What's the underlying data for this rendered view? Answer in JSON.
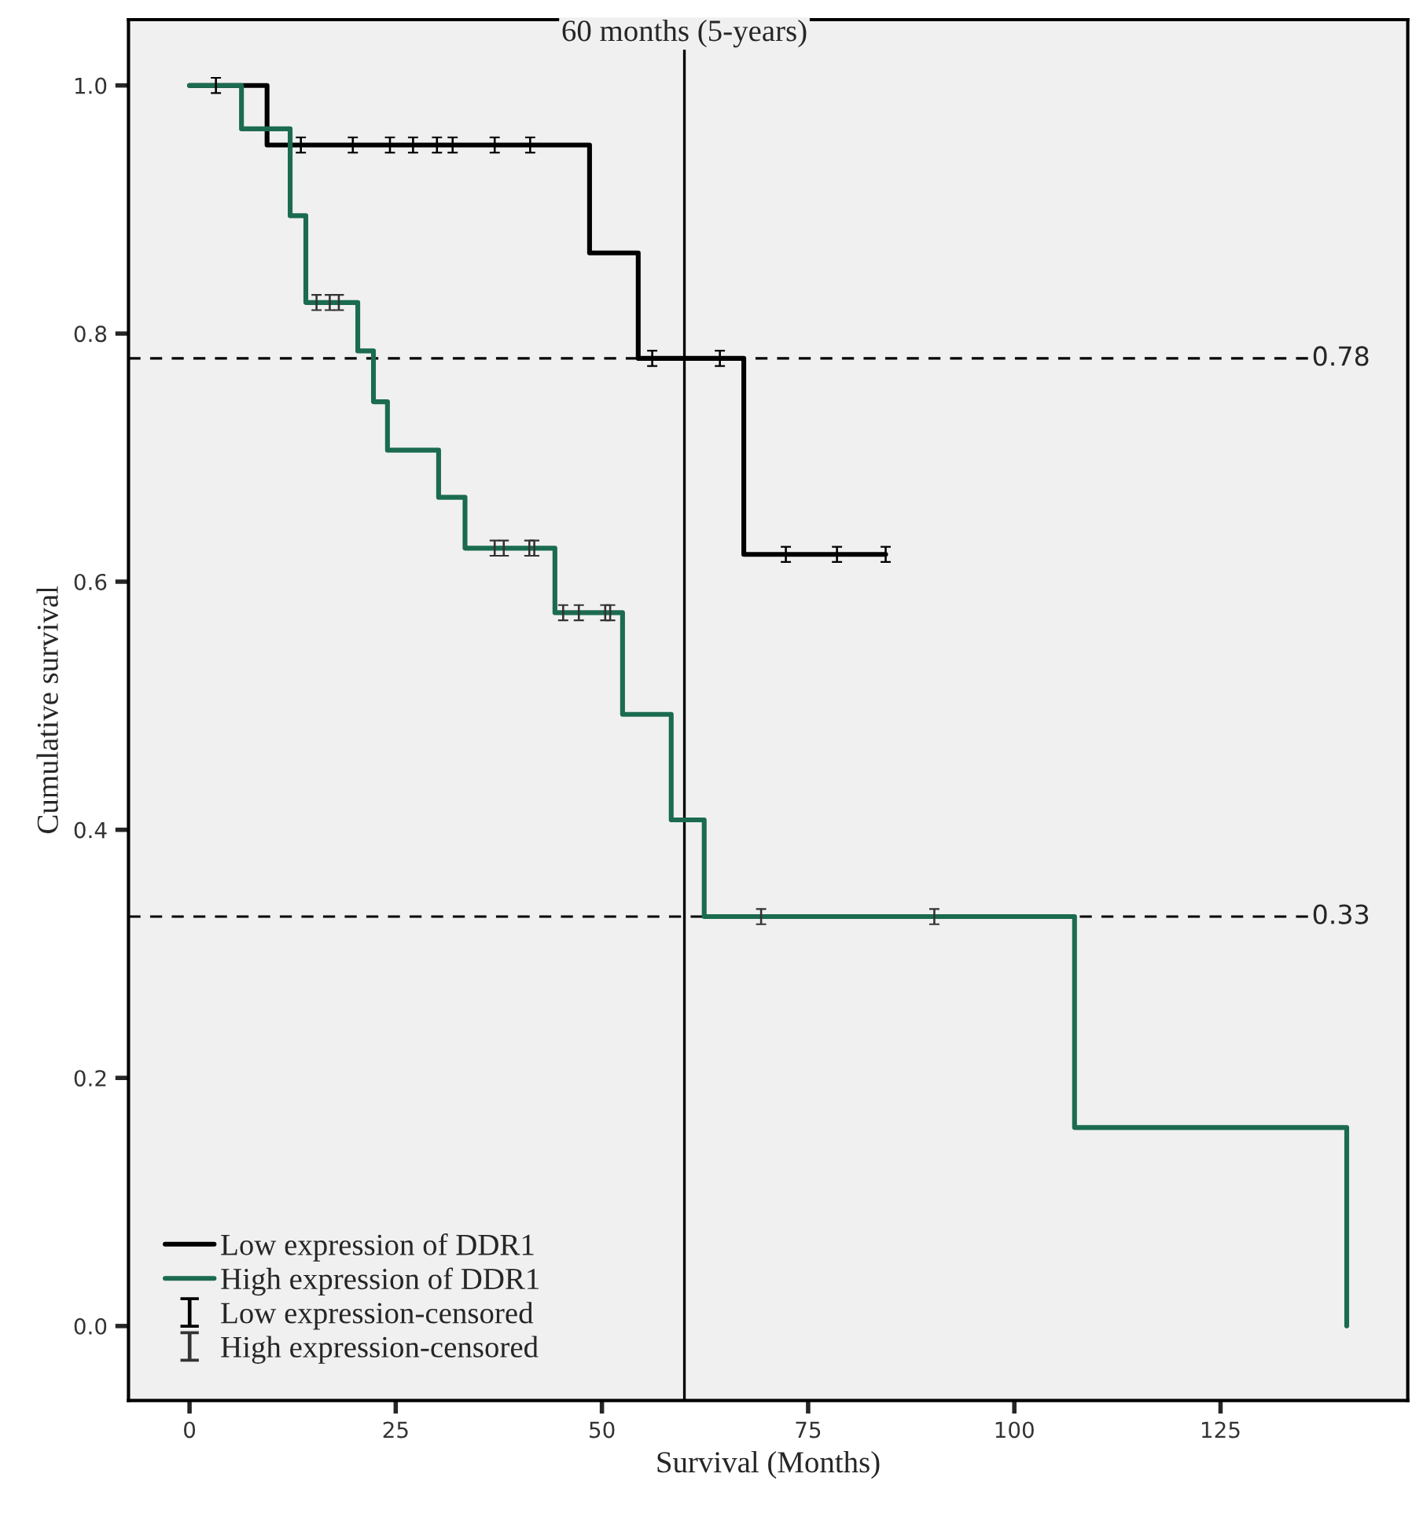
{
  "chart_data": {
    "type": "step",
    "xlabel": "Survival (Months)",
    "ylabel": "Cumulative survival",
    "series": [
      {
        "name": "Low expression of DDR1",
        "color": "#000000",
        "x": [
          0,
          9.4,
          48.5,
          54.4,
          67.2,
          84.4
        ],
        "values": [
          1.0,
          0.952,
          0.865,
          0.78,
          0.622,
          0.622
        ]
      },
      {
        "name": "High expression of DDR1",
        "color": "#1b6b4f",
        "x": [
          0,
          6.3,
          12.2,
          14.1,
          20.4,
          22.3,
          24.0,
          30.2,
          33.4,
          44.3,
          52.5,
          58.4,
          62.4,
          107.3,
          140.3
        ],
        "values": [
          1.0,
          0.965,
          0.895,
          0.825,
          0.786,
          0.745,
          0.706,
          0.668,
          0.627,
          0.575,
          0.493,
          0.408,
          0.33,
          0.16,
          0.0
        ]
      },
      {
        "name": "Low expression-censored",
        "type": "scatter",
        "color": "#000000",
        "x": [
          3.2,
          13.5,
          19.8,
          24.3,
          27.1,
          30.0,
          31.9,
          37.0,
          41.3,
          56.1,
          64.3,
          72.3,
          78.5,
          84.4
        ],
        "values": [
          1.0,
          0.952,
          0.952,
          0.952,
          0.952,
          0.952,
          0.952,
          0.952,
          0.952,
          0.78,
          0.78,
          0.622,
          0.622,
          0.622
        ]
      },
      {
        "name": "High expression-censored",
        "type": "scatter",
        "color": "#333333",
        "x": [
          15.4,
          17.0,
          18.1,
          37.0,
          38.1,
          41.2,
          41.8,
          45.3,
          47.2,
          50.4,
          51.0,
          69.3,
          90.3
        ],
        "values": [
          0.825,
          0.825,
          0.825,
          0.627,
          0.627,
          0.627,
          0.627,
          0.575,
          0.575,
          0.575,
          0.575,
          0.33,
          0.33
        ]
      }
    ],
    "xlim": [
      -7.4,
      147.7
    ],
    "ylim": [
      -0.06,
      1.053
    ],
    "xticks": [
      0,
      25,
      50,
      75,
      100,
      125
    ],
    "yticks": [
      {
        "value": 0.0,
        "label": "0.0"
      },
      0.2,
      0.4,
      0.6,
      0.8,
      {
        "value": 1.0,
        "label": "1.0"
      }
    ],
    "ref_lines": [
      {
        "axis": "y",
        "value": 0.78,
        "label": "0.78",
        "color": "#000000",
        "line_style": "dashed"
      },
      {
        "axis": "y",
        "value": 0.33,
        "label": "0.33",
        "color": "#000000",
        "line_style": "dashed"
      },
      {
        "axis": "x",
        "value": 60,
        "label": "60 months (5-years)",
        "color": "#000000",
        "line_style": "solid"
      }
    ],
    "legend": "bottom left",
    "grid": false
  }
}
